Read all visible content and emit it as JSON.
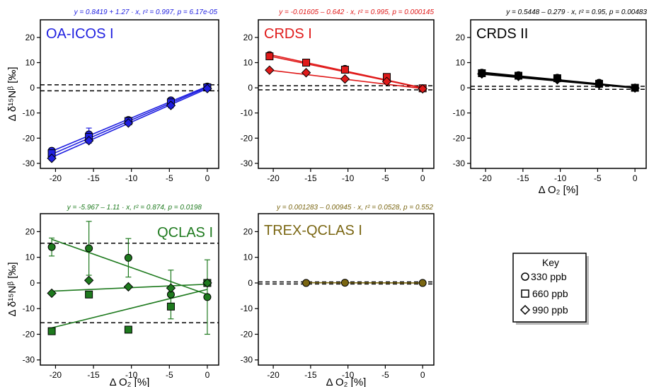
{
  "chart_data": [
    {
      "type": "scatter",
      "title": "OA-ICOS I",
      "equation": "y = 0.8419 + 1.27 · x,  r² = 0.997,  p = 6.17e-05",
      "color": "#1f1fe0",
      "xlabel": "",
      "ylabel": "Δ δ¹⁵Nᵝ [‰]",
      "xlim": [
        -22,
        1.5
      ],
      "ylim": [
        -32,
        27
      ],
      "xticks": [
        -20,
        -15,
        -10,
        -5,
        0
      ],
      "yticks": [
        -30,
        -20,
        -10,
        0,
        10,
        20
      ],
      "dashed_lines": [
        1.2,
        -1.2
      ],
      "series": [
        {
          "marker": "circle",
          "x": [
            -20.5,
            -15.6,
            -10.4,
            -4.8,
            0
          ],
          "y": [
            -25,
            -18.5,
            -12.8,
            -5,
            0.5
          ],
          "err": [
            1,
            2.5,
            1,
            1,
            1
          ]
        },
        {
          "marker": "square",
          "x": [
            -20.5,
            -15.6,
            -10.4,
            -4.8,
            0
          ],
          "y": [
            -26,
            -19.5,
            -13.2,
            -5.8,
            0.2
          ],
          "err": [
            1,
            1.5,
            1,
            1,
            1
          ]
        },
        {
          "marker": "diamond",
          "x": [
            -20.5,
            -15.6,
            -10.4,
            -4.8,
            0
          ],
          "y": [
            -28,
            -21,
            -14,
            -7,
            -0.3
          ],
          "err": [
            0.8,
            1,
            0.8,
            1,
            0.8
          ]
        }
      ],
      "fits": [
        {
          "x": [
            -20.5,
            0
          ],
          "y": [
            -25.2,
            0.6
          ]
        },
        {
          "x": [
            -20.5,
            0
          ],
          "y": [
            -26.4,
            0.2
          ]
        },
        {
          "x": [
            -20.5,
            0
          ],
          "y": [
            -27.6,
            -0.3
          ]
        }
      ]
    },
    {
      "type": "scatter",
      "title": "CRDS I",
      "equation": "y = -0.01605 – 0.642 · x,  r² = 0.995,  p = 0.000145",
      "color": "#e01a1a",
      "xlabel": "",
      "ylabel": "",
      "xlim": [
        -22,
        1.5
      ],
      "ylim": [
        -32,
        27
      ],
      "xticks": [
        -20,
        -15,
        -10,
        -5,
        0
      ],
      "yticks": [
        -30,
        -20,
        -10,
        0,
        10,
        20
      ],
      "dashed_lines": [
        0.8,
        -0.8
      ],
      "series": [
        {
          "marker": "circle",
          "x": [
            -20.5,
            -15.6,
            -10.4,
            -4.8,
            0
          ],
          "y": [
            13,
            10,
            7.5,
            4,
            -0.3
          ],
          "err": [
            0.8,
            0.8,
            0.8,
            0.8,
            0.8
          ]
        },
        {
          "marker": "square",
          "x": [
            -20.5,
            -15.6,
            -10.4,
            -4.8,
            0
          ],
          "y": [
            12.5,
            10,
            7.2,
            4.3,
            -0.2
          ],
          "err": [
            0.5,
            0.5,
            0.5,
            0.5,
            0.5
          ]
        },
        {
          "marker": "diamond",
          "x": [
            -20.5,
            -15.6,
            -10.4,
            -4.8,
            0
          ],
          "y": [
            7,
            6,
            3.5,
            2.5,
            -0.4
          ],
          "err": [
            0.5,
            0.5,
            0.5,
            0.5,
            0.5
          ]
        }
      ],
      "fits": [
        {
          "x": [
            -20.5,
            0
          ],
          "y": [
            13.2,
            0
          ]
        },
        {
          "x": [
            -20.5,
            0
          ],
          "y": [
            12.6,
            -0.1
          ]
        },
        {
          "x": [
            -20.5,
            0
          ],
          "y": [
            7,
            -0.3
          ]
        }
      ]
    },
    {
      "type": "scatter",
      "title": "CRDS II",
      "equation": "y = 0.5448 – 0.279 · x,  r² = 0.95,  p = 0.00483",
      "color": "#000000",
      "xlabel": "Δ O₂ [%]",
      "ylabel": "",
      "xlim": [
        -22,
        1.5
      ],
      "ylim": [
        -32,
        27
      ],
      "xticks": [
        -20,
        -15,
        -10,
        -5,
        0
      ],
      "yticks": [
        -30,
        -20,
        -10,
        0,
        10,
        20
      ],
      "dashed_lines": [
        0.6,
        -0.6
      ],
      "series": [
        {
          "marker": "circle",
          "x": [
            -20.5,
            -15.6,
            -10.4,
            -4.8,
            0
          ],
          "y": [
            6,
            5,
            4,
            2,
            0
          ],
          "err": [
            0.8,
            0.8,
            1,
            0.8,
            0.8
          ]
        },
        {
          "marker": "square",
          "x": [
            -20.5,
            -15.6,
            -10.4,
            -4.8,
            0
          ],
          "y": [
            5.8,
            4.8,
            3.8,
            1.6,
            0
          ],
          "err": [
            0.5,
            0.5,
            0.5,
            0.5,
            0.5
          ]
        },
        {
          "marker": "diamond",
          "x": [
            -20.5,
            -15.6,
            -10.4,
            -4.8,
            0
          ],
          "y": [
            5.5,
            4.5,
            3.2,
            1.4,
            -0.1
          ],
          "err": [
            0.5,
            0.5,
            0.5,
            0.5,
            0.5
          ]
        }
      ],
      "fits": [
        {
          "x": [
            -20.5,
            0
          ],
          "y": [
            6.2,
            0.2
          ]
        },
        {
          "x": [
            -20.5,
            0
          ],
          "y": [
            5.8,
            0
          ]
        },
        {
          "x": [
            -20.5,
            0
          ],
          "y": [
            5.4,
            -0.1
          ]
        }
      ]
    },
    {
      "type": "scatter",
      "title": "QCLAS I",
      "equation": "y = -5.967 – 1.11 · x,  r² = 0.874,  p = 0.0198",
      "color": "#1e7a1e",
      "xlabel": "Δ O₂ [%]",
      "ylabel": "Δ δ¹⁵Nᵝ [‰]",
      "xlim": [
        -22,
        1.5
      ],
      "ylim": [
        -32,
        27
      ],
      "xticks": [
        -20,
        -15,
        -10,
        -5,
        0
      ],
      "yticks": [
        -30,
        -20,
        -10,
        0,
        10,
        20
      ],
      "dashed_lines": [
        15.5,
        -15.5
      ],
      "series": [
        {
          "marker": "circle",
          "x": [
            -20.5,
            -15.6,
            -10.4,
            -4.8,
            0
          ],
          "y": [
            14,
            13.5,
            9.8,
            -4.5,
            -5.5
          ],
          "err": [
            3.5,
            10.5,
            7.5,
            9.5,
            14.5
          ]
        },
        {
          "marker": "square",
          "x": [
            -20.5,
            -15.6,
            -10.4,
            -4.8,
            0
          ],
          "y": [
            -18.8,
            -4.5,
            -18.2,
            -9.2,
            0
          ],
          "err": [
            0,
            0,
            0,
            0,
            0
          ]
        },
        {
          "marker": "diamond",
          "x": [
            -20.5,
            -15.6,
            -10.4,
            -4.8,
            0
          ],
          "y": [
            -4,
            1,
            -1.5,
            -2,
            0
          ],
          "err": [
            0,
            0,
            0,
            0,
            0
          ]
        }
      ],
      "fits": [
        {
          "x": [
            -20.5,
            0
          ],
          "y": [
            17,
            -4.5
          ]
        },
        {
          "x": [
            -20.5,
            0
          ],
          "y": [
            -17.5,
            -2.5
          ]
        },
        {
          "x": [
            -20.5,
            0
          ],
          "y": [
            -3.2,
            -0.5
          ]
        }
      ]
    },
    {
      "type": "scatter",
      "title": "TREX-QCLAS I",
      "equation": "y = 0.001283 – 0.00945 · x,  r² = 0.0528,  p = 0.552",
      "color": "#7a6612",
      "xlabel": "Δ O₂ [%]",
      "ylabel": "",
      "xlim": [
        -22,
        1.5
      ],
      "ylim": [
        -32,
        27
      ],
      "xticks": [
        -20,
        -15,
        -10,
        -5,
        0
      ],
      "yticks": [
        -30,
        -20,
        -10,
        0,
        10,
        20
      ],
      "dashed_lines": [
        0.4,
        -0.4
      ],
      "series": [
        {
          "marker": "circle",
          "x": [
            -15.6,
            -10.4,
            0
          ],
          "y": [
            0,
            0.1,
            0
          ],
          "err": [
            0,
            0,
            0
          ]
        }
      ],
      "fits": [
        {
          "x": [
            -15.6,
            0
          ],
          "y": [
            0.1,
            0
          ]
        }
      ]
    }
  ],
  "legend": {
    "title": "Key",
    "items": [
      {
        "marker": "circle",
        "label": "330 ppb"
      },
      {
        "marker": "square",
        "label": "660 ppb"
      },
      {
        "marker": "diamond",
        "label": "990 ppb"
      }
    ]
  }
}
